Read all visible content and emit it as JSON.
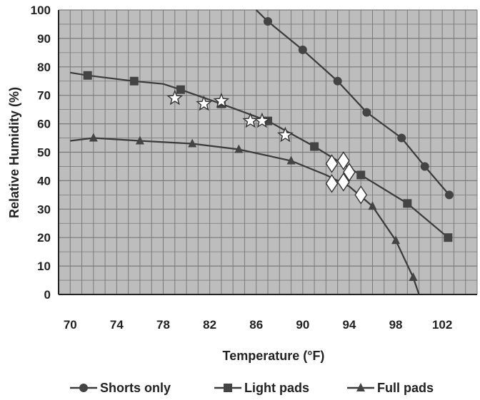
{
  "chart_data": {
    "type": "line",
    "xlabel": "Temperature (°F)",
    "ylabel": "Relative Humidity (%)",
    "xlim": [
      69,
      105
    ],
    "ylim": [
      0,
      100
    ],
    "x_ticks": [
      70,
      74,
      78,
      82,
      86,
      90,
      94,
      98,
      102
    ],
    "y_ticks": [
      0,
      10,
      20,
      30,
      40,
      50,
      60,
      70,
      80,
      90,
      100
    ],
    "grid": true,
    "legend_position": "bottom",
    "series": [
      {
        "name": "Shorts only",
        "marker": "circle",
        "curve": [
          [
            86,
            100
          ],
          [
            87,
            96
          ],
          [
            90,
            86
          ],
          [
            93,
            75
          ],
          [
            95.5,
            64
          ],
          [
            98.5,
            55
          ],
          [
            100.5,
            45
          ],
          [
            102.6,
            35
          ]
        ],
        "markers": [
          [
            87,
            96
          ],
          [
            90,
            86
          ],
          [
            93,
            75
          ],
          [
            95.5,
            64
          ],
          [
            98.5,
            55
          ],
          [
            100.5,
            45
          ],
          [
            102.6,
            35
          ]
        ]
      },
      {
        "name": "Light pads",
        "marker": "square",
        "curve": [
          [
            70,
            78
          ],
          [
            71.5,
            77
          ],
          [
            75.5,
            75
          ],
          [
            78,
            74
          ],
          [
            79.5,
            72
          ],
          [
            83,
            67
          ],
          [
            87,
            61
          ],
          [
            91,
            52
          ],
          [
            95,
            42
          ],
          [
            99,
            32
          ],
          [
            102.5,
            20
          ]
        ],
        "markers": [
          [
            71.5,
            77
          ],
          [
            75.5,
            75
          ],
          [
            79.5,
            72
          ],
          [
            83,
            67
          ],
          [
            87,
            61
          ],
          [
            91,
            52
          ],
          [
            95,
            42
          ],
          [
            99,
            32
          ],
          [
            102.5,
            20
          ]
        ]
      },
      {
        "name": "Full pads",
        "marker": "triangle",
        "curve": [
          [
            70,
            54
          ],
          [
            72,
            55
          ],
          [
            76,
            54
          ],
          [
            80.5,
            53
          ],
          [
            84.5,
            51
          ],
          [
            89,
            47
          ],
          [
            92,
            42
          ],
          [
            94,
            38
          ],
          [
            96,
            31
          ],
          [
            98,
            19
          ],
          [
            99.5,
            6
          ],
          [
            100,
            0
          ]
        ],
        "markers": [
          [
            72,
            55
          ],
          [
            76,
            54
          ],
          [
            80.5,
            53
          ],
          [
            84.5,
            51
          ],
          [
            89,
            47
          ],
          [
            96,
            31
          ],
          [
            98,
            19
          ],
          [
            99.5,
            6
          ]
        ]
      }
    ],
    "extra_points": [
      {
        "marker": "star",
        "points": [
          [
            79,
            69
          ],
          [
            81.5,
            67
          ],
          [
            83,
            68
          ],
          [
            85.5,
            61
          ],
          [
            86.5,
            61
          ],
          [
            88.5,
            56
          ]
        ]
      },
      {
        "marker": "diamond",
        "points": [
          [
            92.5,
            46
          ],
          [
            93.5,
            47
          ],
          [
            94,
            43
          ],
          [
            92.5,
            39
          ],
          [
            93.5,
            39.5
          ],
          [
            95,
            35
          ]
        ]
      }
    ],
    "style": {
      "plot_fill": "#bdbdbd",
      "grid_color": "#7a7a7a",
      "line_color": "#3a3a3a",
      "marker_color": "#444444"
    }
  }
}
